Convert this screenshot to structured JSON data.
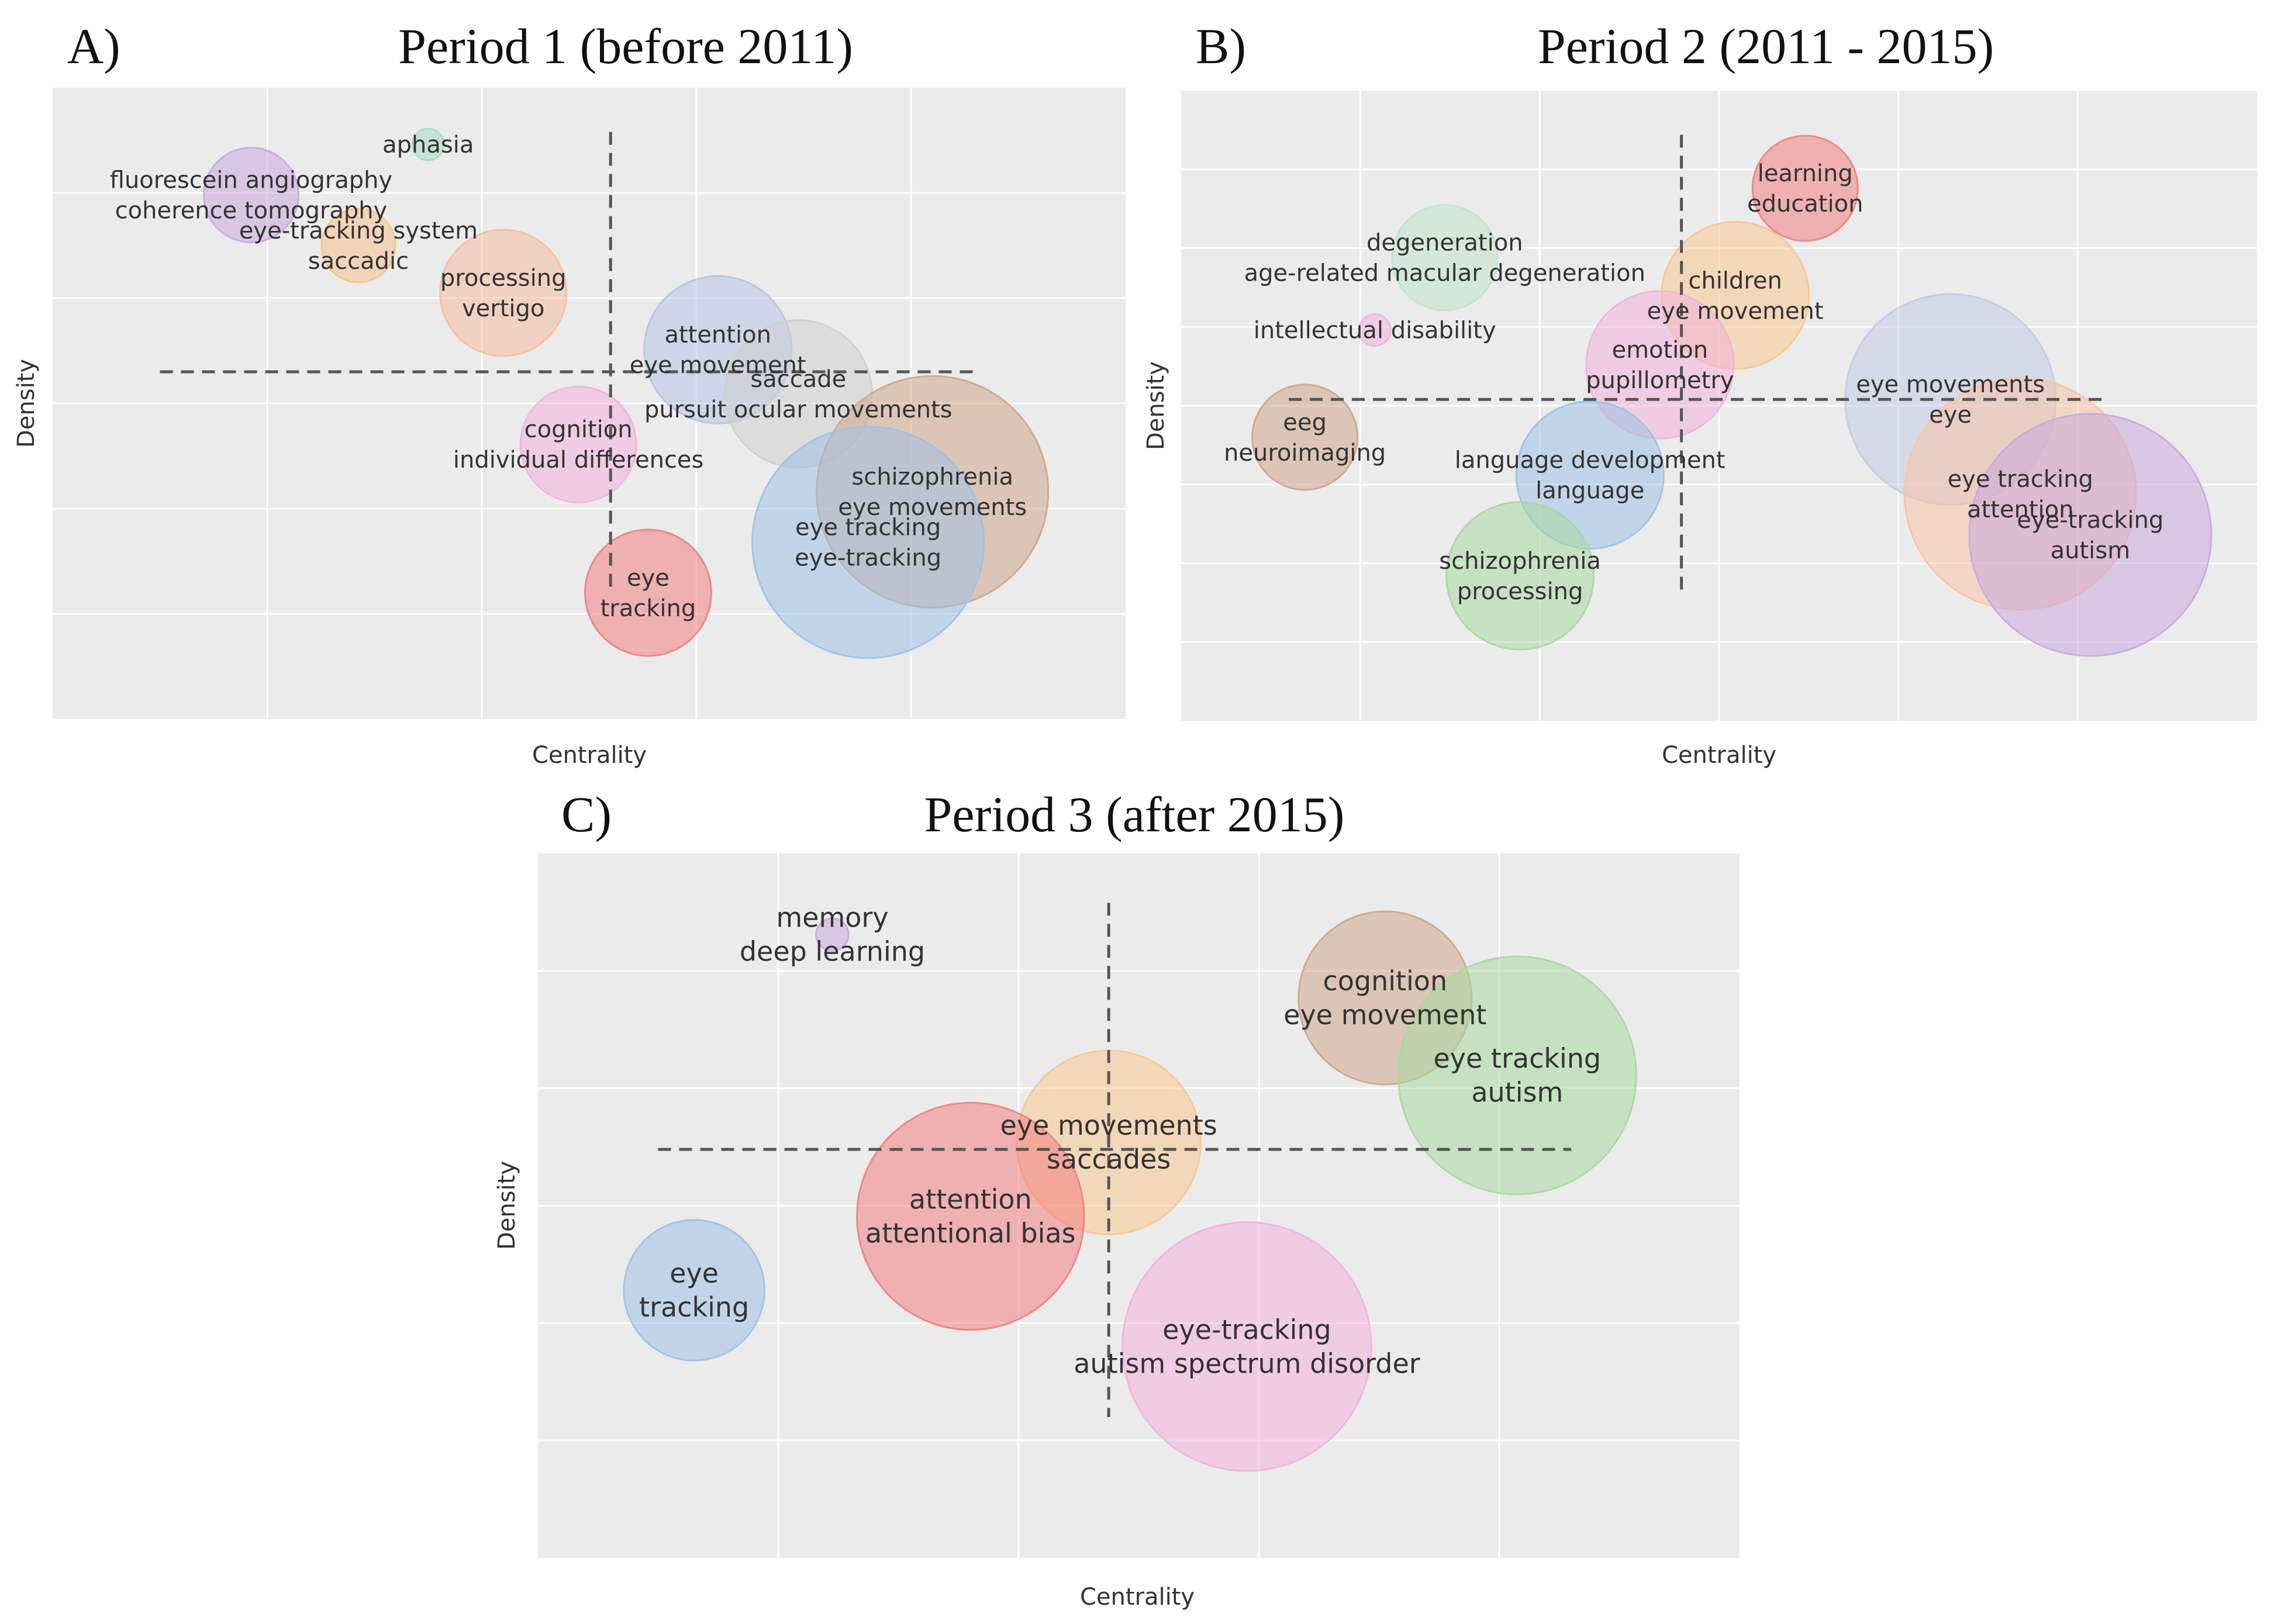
{
  "chart_data": [
    {
      "type": "scatter",
      "panel_label": "A)",
      "title": "Period 1 (before 2011)",
      "xlabel": "Centrality",
      "ylabel": "Density",
      "xlim": [
        0,
        100
      ],
      "ylim": [
        0,
        100
      ],
      "grid": true,
      "legend": "none",
      "reference_lines": {
        "x": 52,
        "y": 55
      },
      "clusters": [
        {
          "labels": [
            "aphasia"
          ],
          "x": 35,
          "y": 91,
          "size": 1.5,
          "color": "#a8dbbe"
        },
        {
          "labels": [
            "fluorescein angiography",
            "coherence tomography"
          ],
          "x": 18.5,
          "y": 83,
          "size": 4.5,
          "color": "#c9a8dd"
        },
        {
          "labels": [
            "eye-tracking system",
            "saccadic"
          ],
          "x": 28.5,
          "y": 75,
          "size": 3.5,
          "color": "#f7c38c"
        },
        {
          "labels": [
            "processing",
            "vertigo"
          ],
          "x": 42,
          "y": 67.5,
          "size": 6,
          "color": "#f6bea0"
        },
        {
          "labels": [
            "attention",
            "eye movement"
          ],
          "x": 62,
          "y": 58.5,
          "size": 7,
          "color": "#b6c3e2"
        },
        {
          "labels": [
            "saccade",
            "pursuit ocular movements"
          ],
          "x": 69.5,
          "y": 51.5,
          "size": 7,
          "color": "#cfcfcf"
        },
        {
          "labels": [
            "cognition",
            "individual differences"
          ],
          "x": 49,
          "y": 43.5,
          "size": 5.5,
          "color": "#f2b2dc"
        },
        {
          "labels": [
            "schizophrenia",
            "eye movements"
          ],
          "x": 82,
          "y": 36,
          "size": 11,
          "color": "#cda58b"
        },
        {
          "labels": [
            "eye tracking",
            "eye-tracking"
          ],
          "x": 76,
          "y": 28,
          "size": 11,
          "color": "#9ec1e3"
        },
        {
          "labels": [
            "eye",
            "tracking"
          ],
          "x": 55.5,
          "y": 20,
          "size": 6,
          "color": "#f08080"
        }
      ]
    },
    {
      "type": "scatter",
      "panel_label": "B)",
      "title": "Period 2 (2011 - 2015)",
      "xlabel": "Centrality",
      "ylabel": "Density",
      "xlim": [
        0,
        100
      ],
      "ylim": [
        0,
        100
      ],
      "grid": true,
      "legend": "none",
      "reference_lines": {
        "x": 46.5,
        "y": 51
      },
      "clusters": [
        {
          "labels": [
            "learning",
            "education"
          ],
          "x": 58,
          "y": 84.5,
          "size": 5,
          "color": "#f08080"
        },
        {
          "labels": [
            "degeneration",
            "age-related macular degeneration"
          ],
          "x": 24.5,
          "y": 73.5,
          "size": 5,
          "color": "#bfe5cc"
        },
        {
          "labels": [
            "children",
            "eye movement"
          ],
          "x": 51.5,
          "y": 67.5,
          "size": 7,
          "color": "#f9c68f"
        },
        {
          "labels": [
            "intellectual disability"
          ],
          "x": 18,
          "y": 62,
          "size": 1.5,
          "color": "#f2b2dc"
        },
        {
          "labels": [
            "emotion",
            "pupillometry"
          ],
          "x": 44.5,
          "y": 56.5,
          "size": 7,
          "color": "#f2b2dc"
        },
        {
          "labels": [
            "eye movements",
            "eye"
          ],
          "x": 71.5,
          "y": 51,
          "size": 10,
          "color": "#c3cae6"
        },
        {
          "labels": [
            "eeg",
            "neuroimaging"
          ],
          "x": 11.5,
          "y": 45,
          "size": 5,
          "color": "#cda58b"
        },
        {
          "labels": [
            "language development",
            "language"
          ],
          "x": 38,
          "y": 39,
          "size": 7,
          "color": "#9ec1e3"
        },
        {
          "labels": [
            "eye tracking",
            "attention"
          ],
          "x": 78,
          "y": 36,
          "size": 11,
          "color": "#f9c3a6"
        },
        {
          "labels": [
            "eye-tracking",
            "autism"
          ],
          "x": 84.5,
          "y": 29.5,
          "size": 11.5,
          "color": "#c9a8dd"
        },
        {
          "labels": [
            "schizophrenia",
            "processing"
          ],
          "x": 31.5,
          "y": 23,
          "size": 7,
          "color": "#a8d8a0"
        }
      ]
    },
    {
      "type": "scatter",
      "panel_label": "C)",
      "title": "Period 3 (after 2015)",
      "xlabel": "Centrality",
      "ylabel": "Density",
      "xlim": [
        0,
        100
      ],
      "ylim": [
        0,
        100
      ],
      "grid": true,
      "legend": "none",
      "reference_lines": {
        "x": 47.5,
        "y": 58
      },
      "clusters": [
        {
          "labels": [
            "memory",
            "deep learning"
          ],
          "x": 24.5,
          "y": 88.5,
          "size": 1.5,
          "color": "#c9a8dd"
        },
        {
          "labels": [
            "cognition",
            "eye movement"
          ],
          "x": 70.5,
          "y": 79.5,
          "size": 8,
          "color": "#cda58b"
        },
        {
          "labels": [
            "eye tracking",
            "autism"
          ],
          "x": 81.5,
          "y": 68.5,
          "size": 11,
          "color": "#a8d8a0"
        },
        {
          "labels": [
            "eye movements",
            "saccades"
          ],
          "x": 47.5,
          "y": 59,
          "size": 8.5,
          "color": "#f9c68f"
        },
        {
          "labels": [
            "attention",
            "attentional bias"
          ],
          "x": 36,
          "y": 48.5,
          "size": 10.5,
          "color": "#f08080"
        },
        {
          "labels": [
            "eye",
            "tracking"
          ],
          "x": 13,
          "y": 38,
          "size": 6.5,
          "color": "#9ec1e3"
        },
        {
          "labels": [
            "eye-tracking",
            "autism spectrum disorder"
          ],
          "x": 59,
          "y": 30,
          "size": 11.5,
          "color": "#f2b2dc"
        }
      ]
    }
  ]
}
